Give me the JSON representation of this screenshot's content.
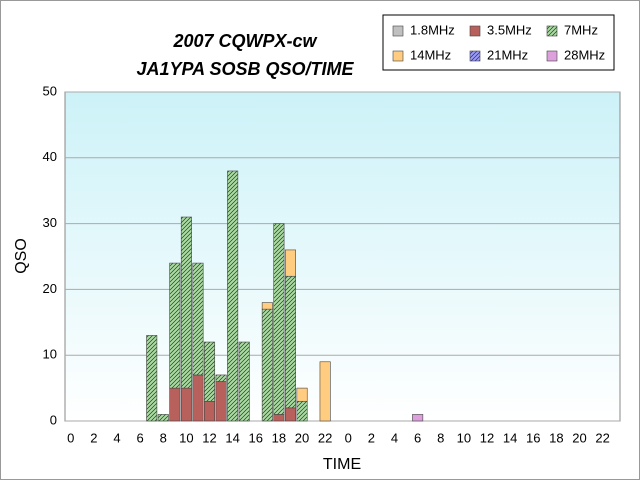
{
  "chart_data": {
    "type": "stacked_bar",
    "title": "2007 CQWPX-cw",
    "subtitle": "JA1YPA SOSB  QSO/TIME",
    "x_label": "TIME",
    "y_label": "QSO",
    "categories": [
      "0",
      null,
      "2",
      null,
      "4",
      null,
      "6",
      null,
      "8",
      null,
      "10",
      null,
      "12",
      null,
      "14",
      null,
      "16",
      null,
      "18",
      null,
      "20",
      null,
      "22",
      null,
      "0",
      null,
      "2",
      null,
      "4",
      null,
      "6",
      null,
      "8",
      null,
      "10",
      null,
      "12",
      null,
      "14",
      null,
      "16",
      null,
      "18",
      null,
      "20",
      null,
      "22",
      null
    ],
    "series": [
      {
        "name": "1.8MHz",
        "color": "#c0c0c0",
        "hatch": false,
        "values": [
          0,
          0,
          0,
          0,
          0,
          0,
          0,
          0,
          0,
          0,
          0,
          0,
          0,
          0,
          0,
          0,
          0,
          0,
          0,
          0,
          0,
          0,
          0,
          0,
          0,
          0,
          0,
          0,
          0,
          0,
          0,
          0,
          0,
          0,
          0,
          0,
          0,
          0,
          0,
          0,
          0,
          0,
          0,
          0,
          0,
          0,
          0,
          0
        ]
      },
      {
        "name": "3.5MHz",
        "color": "#b8605c",
        "hatch": false,
        "values": [
          0,
          0,
          0,
          0,
          0,
          0,
          0,
          0,
          0,
          5,
          5,
          7,
          3,
          6,
          0,
          0,
          0,
          0,
          1,
          2,
          0,
          0,
          0,
          0,
          0,
          0,
          0,
          0,
          0,
          0,
          0,
          0,
          0,
          0,
          0,
          0,
          0,
          0,
          0,
          0,
          0,
          0,
          0,
          0,
          0,
          0,
          0,
          0
        ]
      },
      {
        "name": "7MHz",
        "color": "#a8dca0",
        "hatch": true,
        "values": [
          0,
          0,
          0,
          0,
          0,
          0,
          0,
          13,
          1,
          19,
          26,
          17,
          9,
          1,
          38,
          12,
          0,
          17,
          29,
          20,
          3,
          0,
          0,
          0,
          0,
          0,
          0,
          0,
          0,
          0,
          0,
          0,
          0,
          0,
          0,
          0,
          0,
          0,
          0,
          0,
          0,
          0,
          0,
          0,
          0,
          0,
          0,
          0
        ]
      },
      {
        "name": "14MHz",
        "color": "#ffcc80",
        "hatch": false,
        "values": [
          0,
          0,
          0,
          0,
          0,
          0,
          0,
          0,
          0,
          0,
          0,
          0,
          0,
          0,
          0,
          0,
          0,
          1,
          0,
          4,
          2,
          0,
          9,
          0,
          0,
          0,
          0,
          0,
          0,
          0,
          0,
          0,
          0,
          0,
          0,
          0,
          0,
          0,
          0,
          0,
          0,
          0,
          0,
          0,
          0,
          0,
          0,
          0
        ]
      },
      {
        "name": "21MHz",
        "color": "#9999ff",
        "hatch": true,
        "values": [
          0,
          0,
          0,
          0,
          0,
          0,
          0,
          0,
          0,
          0,
          0,
          0,
          0,
          0,
          0,
          0,
          0,
          0,
          0,
          0,
          0,
          0,
          0,
          0,
          0,
          0,
          0,
          0,
          0,
          0,
          0,
          0,
          0,
          0,
          0,
          0,
          0,
          0,
          0,
          0,
          0,
          0,
          0,
          0,
          0,
          0,
          0,
          0
        ]
      },
      {
        "name": "28MHz",
        "color": "#dda0dd",
        "hatch": false,
        "values": [
          0,
          0,
          0,
          0,
          0,
          0,
          0,
          0,
          0,
          0,
          0,
          0,
          0,
          0,
          0,
          0,
          0,
          0,
          0,
          0,
          0,
          0,
          0,
          0,
          0,
          0,
          0,
          0,
          0,
          0,
          1,
          0,
          0,
          0,
          0,
          0,
          0,
          0,
          0,
          0,
          0,
          0,
          0,
          0,
          0,
          0,
          0,
          0
        ]
      }
    ],
    "ylim": [
      0,
      50
    ],
    "yticks": [
      0,
      10,
      20,
      30,
      40,
      50
    ],
    "grid": true,
    "legend": "top-right"
  }
}
